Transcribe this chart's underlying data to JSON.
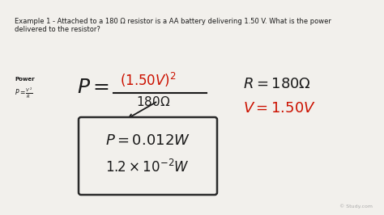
{
  "bg_color": "#f2f0ec",
  "title_text": "Example 1 - Attached to a 180 Ω resistor is a AA battery delivering 1.50 V. What is the power\ndelivered to the resistor?",
  "title_fontsize": 6.0,
  "power_label": "Power",
  "handwriting_color": "#1a1a1a",
  "red_color": "#cc1100",
  "box_color": "#2a2a2a",
  "watermark": "© Study.com"
}
